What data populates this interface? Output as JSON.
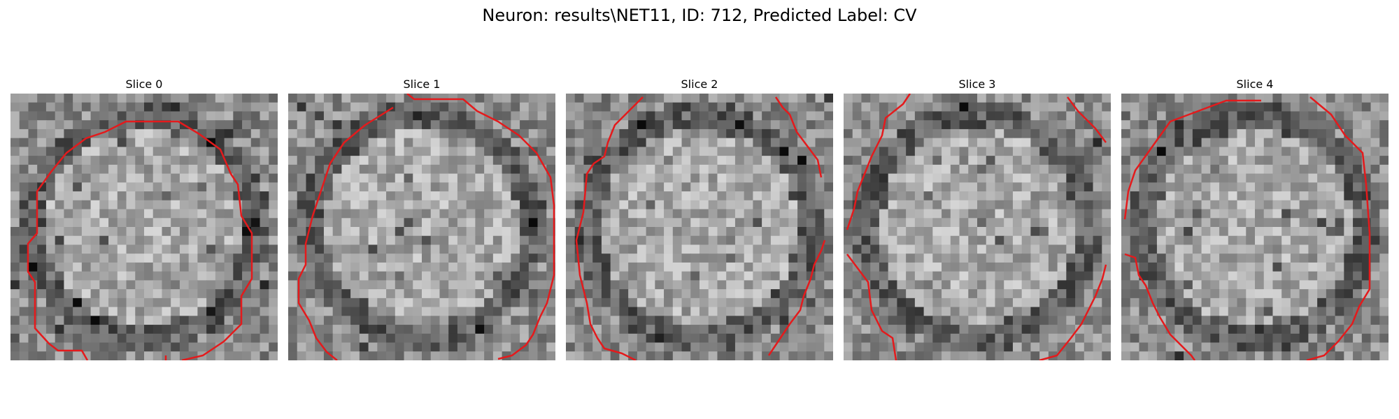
{
  "figure": {
    "title": "Neuron: results\\NET11, ID: 712, Predicted Label: CV"
  },
  "panels": [
    {
      "title": "Slice 0"
    },
    {
      "title": "Slice 1"
    },
    {
      "title": "Slice 2"
    },
    {
      "title": "Slice 3"
    },
    {
      "title": "Slice 4"
    }
  ],
  "colors": {
    "contour": "#e41a1c",
    "background": "#ffffff"
  }
}
